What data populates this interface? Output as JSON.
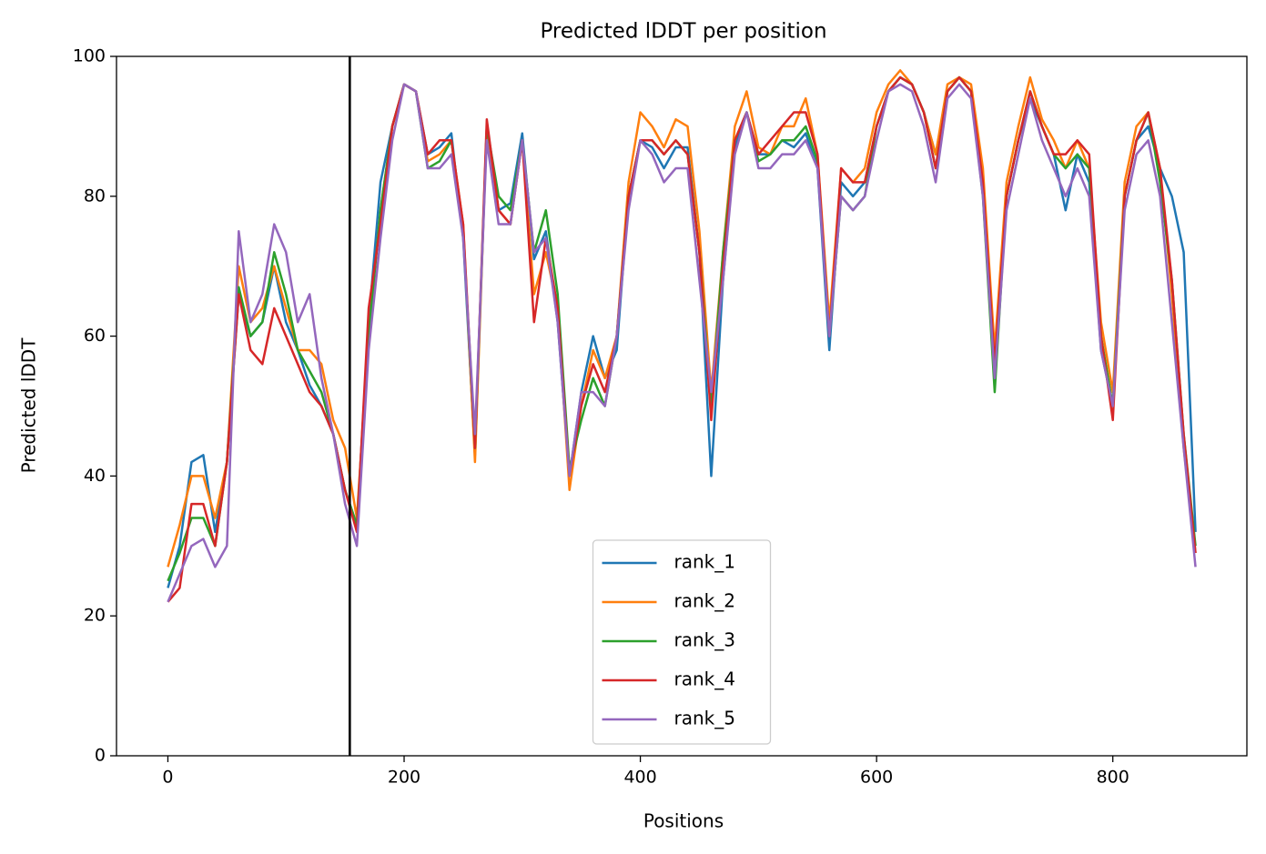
{
  "chart_data": {
    "type": "line",
    "title": "Predicted lDDT per position",
    "xlabel": "Positions",
    "ylabel": "Predicted lDDT",
    "x": [
      0,
      10,
      20,
      30,
      40,
      50,
      60,
      70,
      80,
      90,
      100,
      110,
      120,
      130,
      140,
      150,
      160,
      170,
      180,
      190,
      200,
      210,
      220,
      230,
      240,
      250,
      260,
      270,
      280,
      290,
      300,
      310,
      320,
      330,
      340,
      350,
      360,
      370,
      380,
      390,
      400,
      410,
      420,
      430,
      440,
      450,
      460,
      470,
      480,
      490,
      500,
      510,
      520,
      530,
      540,
      550,
      560,
      570,
      580,
      590,
      600,
      610,
      620,
      630,
      640,
      650,
      660,
      670,
      680,
      690,
      700,
      710,
      720,
      730,
      740,
      750,
      760,
      770,
      780,
      790,
      800,
      810,
      820,
      830,
      840,
      850,
      860,
      870
    ],
    "series": [
      {
        "name": "rank_1",
        "color": "#1f77b4",
        "values": [
          24,
          30,
          42,
          43,
          32,
          42,
          66,
          60,
          62,
          70,
          62,
          58,
          53,
          50,
          46,
          38,
          33,
          62,
          82,
          90,
          96,
          95,
          86,
          87,
          89,
          74,
          43,
          90,
          78,
          79,
          89,
          71,
          75,
          62,
          40,
          52,
          60,
          54,
          58,
          80,
          88,
          87,
          84,
          87,
          87,
          72,
          40,
          68,
          87,
          92,
          86,
          86,
          88,
          87,
          89,
          84,
          58,
          82,
          80,
          82,
          90,
          95,
          97,
          96,
          92,
          86,
          95,
          97,
          95,
          82,
          56,
          80,
          88,
          94,
          90,
          86,
          78,
          86,
          82,
          58,
          50,
          80,
          88,
          90,
          84,
          80,
          72,
          32
        ]
      },
      {
        "name": "rank_2",
        "color": "#ff7f0e",
        "values": [
          27,
          33,
          40,
          40,
          34,
          42,
          70,
          62,
          64,
          70,
          64,
          58,
          58,
          56,
          48,
          44,
          34,
          60,
          78,
          90,
          96,
          95,
          85,
          86,
          88,
          76,
          42,
          90,
          78,
          76,
          88,
          66,
          72,
          64,
          38,
          50,
          58,
          54,
          60,
          82,
          92,
          90,
          87,
          91,
          90,
          75,
          52,
          72,
          90,
          95,
          87,
          86,
          90,
          90,
          94,
          86,
          62,
          84,
          82,
          84,
          92,
          96,
          98,
          96,
          92,
          86,
          96,
          97,
          96,
          84,
          58,
          82,
          90,
          97,
          91,
          88,
          84,
          88,
          84,
          62,
          52,
          82,
          90,
          92,
          84,
          66,
          44,
          29
        ]
      },
      {
        "name": "rank_3",
        "color": "#2ca02c",
        "values": [
          25,
          29,
          34,
          34,
          30,
          42,
          67,
          60,
          62,
          72,
          66,
          58,
          55,
          52,
          46,
          38,
          33,
          60,
          78,
          90,
          96,
          95,
          84,
          85,
          88,
          75,
          44,
          90,
          80,
          78,
          88,
          72,
          78,
          66,
          41,
          48,
          54,
          50,
          60,
          80,
          88,
          88,
          86,
          88,
          86,
          72,
          50,
          72,
          88,
          92,
          85,
          86,
          88,
          88,
          90,
          85,
          60,
          80,
          78,
          80,
          90,
          95,
          97,
          96,
          92,
          84,
          95,
          97,
          95,
          80,
          52,
          80,
          88,
          95,
          90,
          86,
          84,
          86,
          84,
          60,
          50,
          80,
          88,
          92,
          82,
          68,
          46,
          30
        ]
      },
      {
        "name": "rank_4",
        "color": "#d62728",
        "values": [
          22,
          24,
          36,
          36,
          30,
          42,
          66,
          58,
          56,
          64,
          60,
          56,
          52,
          50,
          46,
          38,
          32,
          64,
          76,
          90,
          96,
          95,
          86,
          88,
          88,
          76,
          44,
          91,
          78,
          76,
          88,
          62,
          74,
          64,
          40,
          50,
          56,
          52,
          60,
          80,
          88,
          88,
          86,
          88,
          86,
          72,
          48,
          70,
          88,
          92,
          86,
          88,
          90,
          92,
          92,
          86,
          60,
          84,
          82,
          82,
          90,
          95,
          97,
          96,
          92,
          84,
          95,
          97,
          95,
          82,
          56,
          80,
          88,
          95,
          90,
          86,
          86,
          88,
          86,
          60,
          48,
          80,
          88,
          92,
          84,
          68,
          46,
          29
        ]
      },
      {
        "name": "rank_5",
        "color": "#9467bd",
        "values": [
          22,
          26,
          30,
          31,
          27,
          30,
          75,
          62,
          66,
          76,
          72,
          62,
          66,
          54,
          46,
          36,
          30,
          58,
          74,
          88,
          96,
          95,
          84,
          84,
          86,
          74,
          46,
          88,
          76,
          76,
          88,
          72,
          74,
          62,
          40,
          52,
          52,
          50,
          60,
          78,
          88,
          86,
          82,
          84,
          84,
          68,
          52,
          68,
          86,
          92,
          84,
          84,
          86,
          86,
          88,
          84,
          60,
          80,
          78,
          80,
          88,
          95,
          96,
          95,
          90,
          82,
          94,
          96,
          94,
          80,
          54,
          78,
          86,
          94,
          88,
          84,
          80,
          84,
          80,
          58,
          50,
          78,
          86,
          88,
          80,
          62,
          44,
          27
        ]
      }
    ],
    "vline": 154,
    "vline_color": "#000000",
    "xlim": [
      -43.5,
      913.5
    ],
    "ylim": [
      0,
      100
    ],
    "xticks": [
      0,
      200,
      400,
      600,
      800
    ],
    "yticks": [
      0,
      20,
      40,
      60,
      80,
      100
    ],
    "legend": "lower center"
  }
}
